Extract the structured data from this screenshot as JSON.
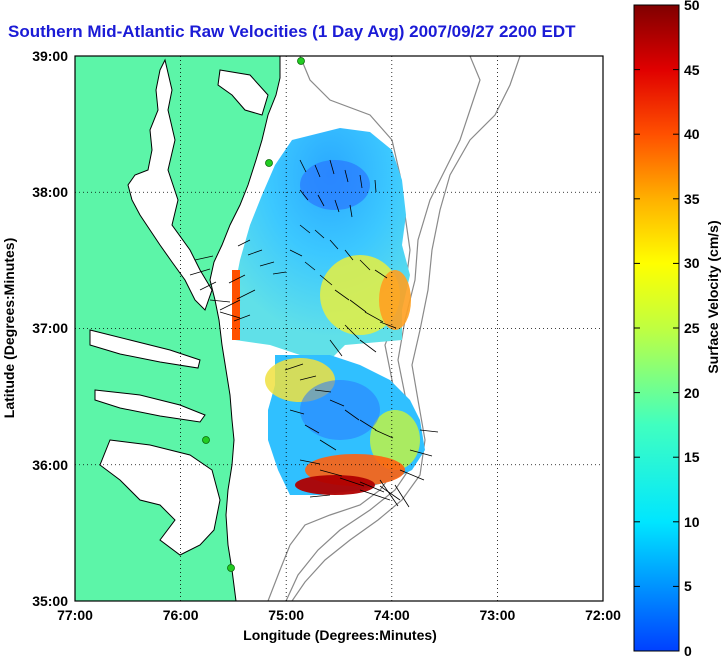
{
  "title": "Southern Mid-Atlantic Raw Velocities (1 Day Avg) 2007/09/27 2200 EDT",
  "map": {
    "xlabel": "Longitude (Degrees:Minutes)",
    "ylabel": "Latitude (Degrees:Minutes)",
    "x_ticks": [
      "77:00",
      "76:00",
      "75:00",
      "74:00",
      "73:00",
      "72:00"
    ],
    "y_ticks": [
      "39:00",
      "38:00",
      "37:00",
      "36:00",
      "35:00"
    ],
    "x_range": [
      -77,
      -72
    ],
    "y_range": [
      35,
      39
    ],
    "land_color": "#5cf5a8",
    "coast_color": "#000000",
    "contour_color": "#8a8a8a",
    "station_color": "#22cc22",
    "grid": "dotted"
  },
  "colorbar": {
    "label": "Surface Velocity (cm/s)",
    "ticks": [
      "0",
      "5",
      "10",
      "15",
      "20",
      "25",
      "30",
      "35",
      "40",
      "45",
      "50"
    ],
    "range": [
      0,
      50
    ],
    "colormap": "jet"
  }
}
